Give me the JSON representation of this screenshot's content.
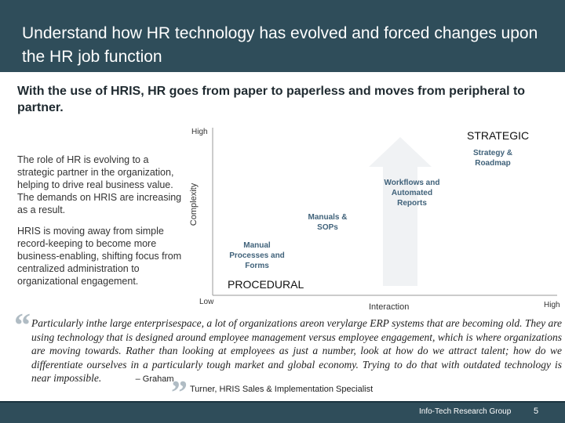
{
  "header": {
    "title": "Understand how HR technology has evolved and forced changes upon the HR job function"
  },
  "subtitle": "With the use of HRIS, HR goes from paper to paperless and moves from peripheral to partner.",
  "left_text": {
    "para1": "The role of HR is evolving to a strategic partner in the organization, helping to drive real business value. The demands on HRIS are increasing as a result.",
    "para2": "HRIS is moving away from simple record-keeping to become more business-enabling, shifting focus from centralized administration to organizational engagement."
  },
  "chart": {
    "y_axis": "Complexity",
    "x_axis": "Interaction",
    "y_high": "High",
    "y_low": "Low",
    "x_high": "High",
    "top_label": "STRATEGIC",
    "bottom_label": "PROCEDURAL",
    "items": [
      {
        "label": "Manual Processes and Forms"
      },
      {
        "label": "Manuals & SOPs"
      },
      {
        "label": "Workflows and Automated Reports"
      },
      {
        "label": "Strategy & Roadmap"
      }
    ]
  },
  "quote": {
    "text": "Particularly inthe large enterprisespace, a lot of organizations areon verylarge ERP systems that are becoming old. They are using technology that is designed around employee management versus employee engagement, which is where organizations are moving towards. Rather than looking at employees as just a number, look at how do we attract talent; how do we differentiate ourselves in a particularly tough market and global economy. Trying to do that with outdated technology is near impossible.",
    "author_dash": "– Graham",
    "attribution": "Turner, HRIS Sales & Implementation Specialist"
  },
  "footer": {
    "brand": "Info-Tech Research Group",
    "page": "5"
  }
}
